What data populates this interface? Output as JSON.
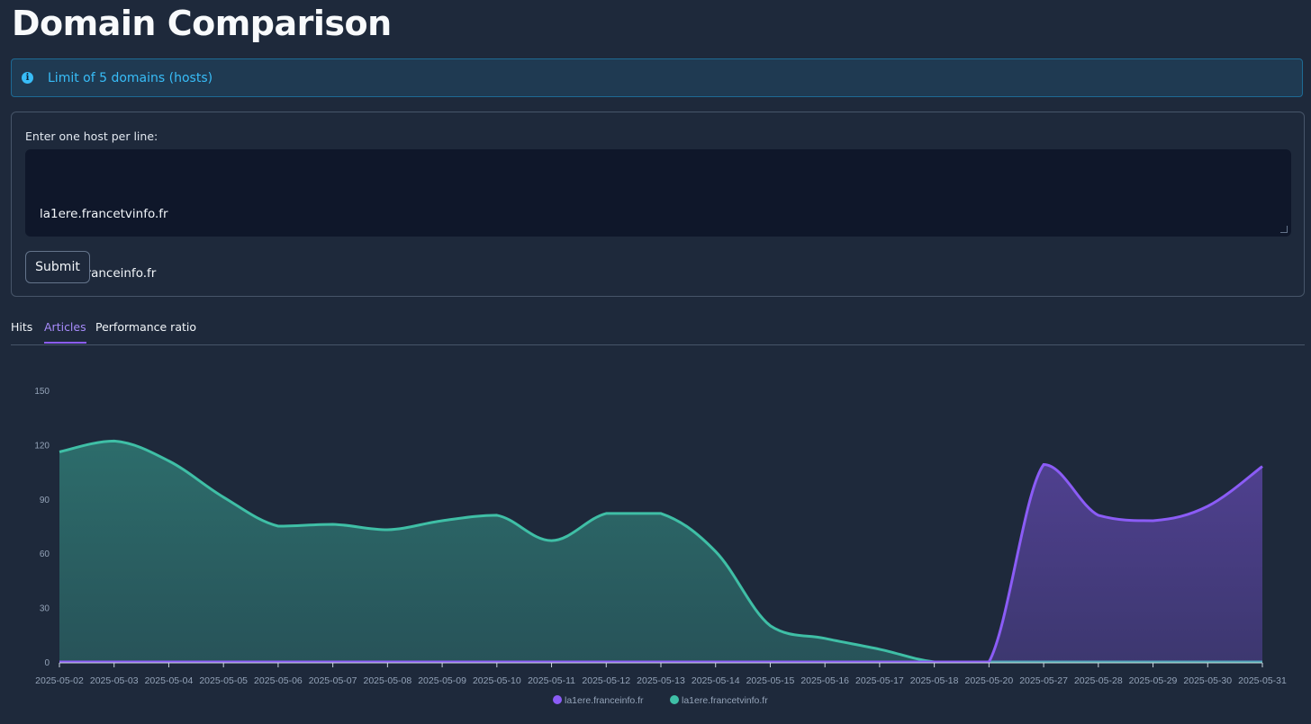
{
  "page": {
    "title": "Domain Comparison"
  },
  "alert": {
    "icon": "info-icon",
    "text": "Limit of 5 domains (hosts)",
    "color": "#38bdf8"
  },
  "form": {
    "label": "Enter one host per line:",
    "hosts": [
      "la1ere.francetvinfo.fr",
      "la1ere.franceinfo.fr"
    ],
    "submit_label": "Submit"
  },
  "tabs": [
    {
      "label": "Hits",
      "active": false
    },
    {
      "label": "Articles",
      "active": true
    },
    {
      "label": "Performance ratio",
      "active": false
    }
  ],
  "colors": {
    "accent": "#8b5cf6",
    "teal": "#2dd4bf",
    "background": "#1e293b"
  },
  "chart_data": {
    "type": "area",
    "categories": [
      "2025-05-02",
      "2025-05-03",
      "2025-05-04",
      "2025-05-05",
      "2025-05-06",
      "2025-05-07",
      "2025-05-08",
      "2025-05-09",
      "2025-05-10",
      "2025-05-11",
      "2025-05-12",
      "2025-05-13",
      "2025-05-14",
      "2025-05-15",
      "2025-05-16",
      "2025-05-17",
      "2025-05-18",
      "2025-05-20",
      "2025-05-27",
      "2025-05-28",
      "2025-05-29",
      "2025-05-30",
      "2025-05-31"
    ],
    "series": [
      {
        "name": "la1ere.franceinfo.fr",
        "color": "#8b5cf6",
        "values": [
          0,
          0,
          0,
          0,
          0,
          0,
          0,
          0,
          0,
          0,
          0,
          0,
          0,
          0,
          0,
          0,
          0,
          0,
          109,
          81,
          78,
          86,
          108
        ]
      },
      {
        "name": "la1ere.francetvinfo.fr",
        "color": "#3fbfa6",
        "values": [
          116,
          122,
          111,
          91,
          75,
          76,
          73,
          78,
          81,
          67,
          82,
          82,
          61,
          20,
          13,
          7,
          0,
          0,
          0,
          0,
          0,
          0,
          0
        ]
      }
    ],
    "yticks": [
      0,
      30,
      60,
      90,
      120,
      150
    ],
    "ylim": [
      0,
      150
    ],
    "legend": "bottom-center",
    "grid": false
  }
}
